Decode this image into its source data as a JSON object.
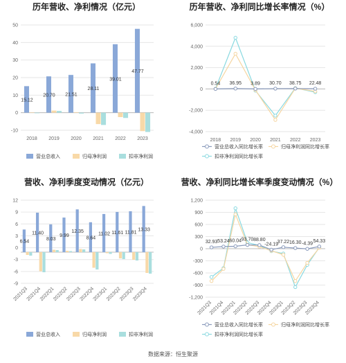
{
  "footer": "数据来源：恒生聚源",
  "chart_data": [
    {
      "type": "bar",
      "title": "历年营收、净利情况（亿元）",
      "categories": [
        "2018",
        "2019",
        "2020",
        "2021",
        "2022",
        "2023"
      ],
      "series": [
        {
          "name": "营业总收入",
          "color": "#8aa8d8",
          "values": [
            15.12,
            20.7,
            21.51,
            28.11,
            39.01,
            47.77
          ]
        },
        {
          "name": "归母净利润",
          "color": "#f8d9a8",
          "values": [
            0.2,
            1.2,
            0.3,
            -6.5,
            -2.5,
            -10.5
          ]
        },
        {
          "name": "扣非净利润",
          "color": "#a9dede",
          "values": [
            -0.3,
            1.0,
            -0.5,
            -7.0,
            -3.0,
            -11.0
          ]
        }
      ],
      "data_labels": [
        "15.12",
        "20.70",
        "21.51",
        "28.11",
        "39.01",
        "47.77"
      ],
      "ylim": [
        -10,
        50
      ],
      "yticks": [
        "50",
        "40",
        "30",
        "20",
        "10",
        "0",
        "-10"
      ],
      "legend": "bottom",
      "grid": true
    },
    {
      "type": "line",
      "title": "历年营收、净利同比增长率情况（%）",
      "categories": [
        "2018",
        "2019",
        "2020",
        "2021",
        "2022",
        "2023"
      ],
      "series": [
        {
          "name": "营业总收入同比增长率",
          "color": "#8899bb",
          "values": [
            0.54,
            36.95,
            3.89,
            30.7,
            38.75,
            22.48
          ]
        },
        {
          "name": "归母净利润同比增长率",
          "color": "#f5d5a0",
          "values": [
            10,
            3300,
            -100,
            -2900,
            60,
            -220
          ]
        },
        {
          "name": "扣非净利润同比增长率",
          "color": "#8ad9e0",
          "values": [
            20,
            4800,
            -150,
            -2500,
            80,
            -300
          ]
        }
      ],
      "data_labels": [
        "0.54",
        "36.95",
        "3.89",
        "30.70",
        "38.75",
        "22.48"
      ],
      "ylim": [
        -4000,
        6000
      ],
      "yticks": [
        "6,000",
        "4,000",
        "2,000",
        "0",
        "-2,000",
        "-4,000"
      ],
      "legend": "bottom",
      "grid": true
    },
    {
      "type": "bar",
      "title": "营收、净利季度变动情况（亿元）",
      "categories": [
        "2021Q3",
        "2021Q4",
        "2022Q1",
        "2022Q2",
        "2022Q3",
        "2022Q4",
        "2023Q1",
        "2023Q2",
        "2023Q3",
        "2023Q4"
      ],
      "series": [
        {
          "name": "营业总收入",
          "color": "#8aa8d8",
          "values": [
            6.54,
            11.4,
            8.03,
            9.99,
            12.35,
            8.64,
            11.02,
            11.61,
            11.81,
            13.33
          ]
        },
        {
          "name": "归母净利润",
          "color": "#f8d9a8",
          "values": [
            -0.8,
            -5.5,
            0.7,
            0.4,
            0.9,
            -4.5,
            -0.3,
            -1.8,
            -2.2,
            -6.0
          ]
        },
        {
          "name": "扣非净利润",
          "color": "#a9dede",
          "values": [
            -1.0,
            -5.8,
            0.6,
            0.3,
            0.8,
            -5.0,
            -0.5,
            -2.0,
            -2.4,
            -6.2
          ]
        }
      ],
      "data_labels": [
        "6.54",
        "11.40",
        "8.03",
        "9.99",
        "12.35",
        "8.64",
        "11.02",
        "11.61",
        "11.81",
        "13.33"
      ],
      "ylim": [
        -9,
        15
      ],
      "yticks": [
        "12",
        "9",
        "6",
        "3",
        "0",
        "-3",
        "-6",
        "-9"
      ],
      "legend": "bottom",
      "grid": true
    },
    {
      "type": "line",
      "title": "营收、净利同比增长率季度变动情况（%）",
      "categories": [
        "2021Q3",
        "2021Q4",
        "2022Q1",
        "2022Q2",
        "2022Q3",
        "2022Q4",
        "2023Q1",
        "2023Q2",
        "2023Q3",
        "2023Q4"
      ],
      "series": [
        {
          "name": "营业总收入同比增长率",
          "color": "#8899bb",
          "values": [
            32.93,
            53.24,
            60.04,
            93.7,
            88.8,
            -24.19,
            37.22,
            16.3,
            -4.39,
            54.33
          ]
        },
        {
          "name": "归母净利润同比增长率",
          "color": "#f5d5a0",
          "values": [
            -800,
            -500,
            850,
            100,
            50,
            -50,
            -150,
            -800,
            -350,
            20
          ]
        },
        {
          "name": "扣非净利润同比增长率",
          "color": "#8ad9e0",
          "values": [
            -700,
            -480,
            1000,
            150,
            80,
            -60,
            -120,
            -950,
            -400,
            30
          ]
        }
      ],
      "data_labels": [
        "32.93",
        "53.24",
        "60.04",
        "93.70",
        "88.80",
        "-24.19",
        "37.22",
        "16.30",
        "-4.39",
        "54.33"
      ],
      "ylim": [
        -1200,
        1200
      ],
      "yticks": [
        "1,200",
        "900",
        "600",
        "300",
        "0",
        "-300",
        "-600",
        "-900",
        "-1,200"
      ],
      "legend": "bottom",
      "grid": true
    }
  ]
}
